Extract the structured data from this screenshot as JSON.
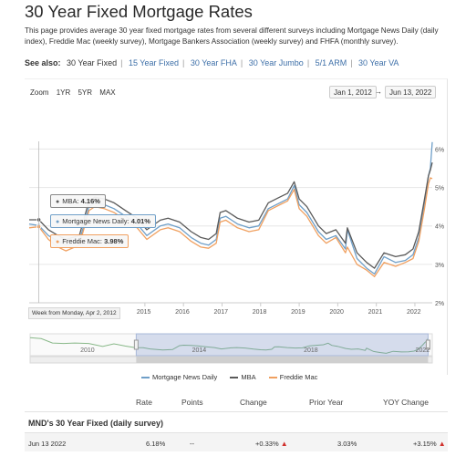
{
  "header": {
    "title": "30 Year Fixed Mortgage Rates",
    "description": "This page provides average 30 year fixed mortgage rates from several different surveys including Mortgage News Daily (daily index), Freddie Mac (weekly survey), Mortgage Bankers Association (weekly survey) and FHFA (monthly survey)."
  },
  "see_also": {
    "label": "See also:",
    "links": [
      "30 Year Fixed",
      "15 Year Fixed",
      "30 Year FHA",
      "30 Year Jumbo",
      "5/1 ARM",
      "30 Year VA"
    ]
  },
  "chart_controls": {
    "zoom_label": "Zoom",
    "zoom_options": [
      "1YR",
      "5YR",
      "MAX"
    ],
    "range_from": "Jan 1, 2012",
    "range_arrow": "→",
    "range_to": "Jun 13, 2022"
  },
  "tooltip": {
    "mba_label": "MBA:",
    "mba_value": "4.16%",
    "mnd_label": "Mortgage News Daily:",
    "mnd_value": "4.01%",
    "fm_label": "Freddie Mac:",
    "fm_value": "3.98%",
    "dot": "●",
    "date_flag": "Week from Monday, Apr 2, 2012"
  },
  "chart_data": {
    "type": "line",
    "x_ticks": [
      "2015",
      "2016",
      "2017",
      "2018",
      "2019",
      "2020",
      "2021",
      "2022"
    ],
    "y_ticks": [
      "2%",
      "3%",
      "4%",
      "5%",
      "6%"
    ],
    "ylim": [
      2,
      6.2
    ],
    "xlim": [
      2012.0,
      2022.45
    ],
    "navigator_ticks": [
      "2010",
      "2014",
      "2018",
      "2022"
    ],
    "series": [
      {
        "name": "Mortgage News Daily",
        "color": "#6f9fc8",
        "points": [
          [
            2012.0,
            4.05
          ],
          [
            2012.25,
            4.01
          ],
          [
            2012.5,
            3.75
          ],
          [
            2012.75,
            3.6
          ],
          [
            2012.95,
            3.5
          ],
          [
            2013.3,
            3.6
          ],
          [
            2013.55,
            4.5
          ],
          [
            2013.7,
            4.6
          ],
          [
            2013.95,
            4.55
          ],
          [
            2014.2,
            4.45
          ],
          [
            2014.5,
            4.25
          ],
          [
            2014.8,
            4.05
          ],
          [
            2015.05,
            3.75
          ],
          [
            2015.4,
            4.0
          ],
          [
            2015.6,
            4.05
          ],
          [
            2015.9,
            3.95
          ],
          [
            2016.2,
            3.7
          ],
          [
            2016.45,
            3.55
          ],
          [
            2016.65,
            3.5
          ],
          [
            2016.85,
            3.65
          ],
          [
            2016.95,
            4.2
          ],
          [
            2017.1,
            4.25
          ],
          [
            2017.4,
            4.05
          ],
          [
            2017.7,
            3.95
          ],
          [
            2017.95,
            4.0
          ],
          [
            2018.2,
            4.45
          ],
          [
            2018.5,
            4.6
          ],
          [
            2018.7,
            4.7
          ],
          [
            2018.87,
            5.05
          ],
          [
            2019.0,
            4.55
          ],
          [
            2019.2,
            4.35
          ],
          [
            2019.5,
            3.85
          ],
          [
            2019.7,
            3.65
          ],
          [
            2019.95,
            3.75
          ],
          [
            2020.2,
            3.4
          ],
          [
            2020.25,
            3.9
          ],
          [
            2020.5,
            3.15
          ],
          [
            2020.75,
            2.9
          ],
          [
            2020.95,
            2.75
          ],
          [
            2021.2,
            3.2
          ],
          [
            2021.5,
            3.05
          ],
          [
            2021.75,
            3.1
          ],
          [
            2021.95,
            3.25
          ],
          [
            2022.1,
            3.7
          ],
          [
            2022.25,
            4.6
          ],
          [
            2022.35,
            5.3
          ],
          [
            2022.4,
            5.5
          ],
          [
            2022.45,
            6.18
          ]
        ]
      },
      {
        "name": "MBA",
        "color": "#5a5a5a",
        "points": [
          [
            2012.0,
            4.16
          ],
          [
            2012.25,
            4.16
          ],
          [
            2012.5,
            3.9
          ],
          [
            2012.75,
            3.75
          ],
          [
            2012.95,
            3.65
          ],
          [
            2013.3,
            3.75
          ],
          [
            2013.55,
            4.65
          ],
          [
            2013.7,
            4.75
          ],
          [
            2013.95,
            4.7
          ],
          [
            2014.2,
            4.6
          ],
          [
            2014.5,
            4.4
          ],
          [
            2014.8,
            4.2
          ],
          [
            2015.05,
            3.9
          ],
          [
            2015.4,
            4.15
          ],
          [
            2015.6,
            4.2
          ],
          [
            2015.9,
            4.1
          ],
          [
            2016.2,
            3.85
          ],
          [
            2016.45,
            3.7
          ],
          [
            2016.65,
            3.65
          ],
          [
            2016.85,
            3.8
          ],
          [
            2016.95,
            4.35
          ],
          [
            2017.1,
            4.4
          ],
          [
            2017.4,
            4.2
          ],
          [
            2017.7,
            4.1
          ],
          [
            2017.95,
            4.15
          ],
          [
            2018.2,
            4.6
          ],
          [
            2018.5,
            4.75
          ],
          [
            2018.7,
            4.85
          ],
          [
            2018.87,
            5.15
          ],
          [
            2019.0,
            4.7
          ],
          [
            2019.2,
            4.5
          ],
          [
            2019.5,
            4.0
          ],
          [
            2019.7,
            3.8
          ],
          [
            2019.95,
            3.9
          ],
          [
            2020.2,
            3.55
          ],
          [
            2020.25,
            3.95
          ],
          [
            2020.5,
            3.3
          ],
          [
            2020.75,
            3.05
          ],
          [
            2020.95,
            2.9
          ],
          [
            2021.2,
            3.3
          ],
          [
            2021.5,
            3.2
          ],
          [
            2021.75,
            3.25
          ],
          [
            2021.95,
            3.4
          ],
          [
            2022.1,
            3.85
          ],
          [
            2022.25,
            4.7
          ],
          [
            2022.35,
            5.3
          ],
          [
            2022.4,
            5.45
          ],
          [
            2022.45,
            5.65
          ]
        ]
      },
      {
        "name": "Freddie Mac",
        "color": "#f0a060",
        "points": [
          [
            2012.0,
            3.95
          ],
          [
            2012.25,
            3.98
          ],
          [
            2012.5,
            3.65
          ],
          [
            2012.75,
            3.45
          ],
          [
            2012.95,
            3.35
          ],
          [
            2013.3,
            3.5
          ],
          [
            2013.55,
            4.4
          ],
          [
            2013.7,
            4.5
          ],
          [
            2013.95,
            4.45
          ],
          [
            2014.2,
            4.35
          ],
          [
            2014.5,
            4.15
          ],
          [
            2014.8,
            3.95
          ],
          [
            2015.05,
            3.65
          ],
          [
            2015.4,
            3.9
          ],
          [
            2015.6,
            3.95
          ],
          [
            2015.9,
            3.85
          ],
          [
            2016.2,
            3.6
          ],
          [
            2016.45,
            3.45
          ],
          [
            2016.65,
            3.42
          ],
          [
            2016.85,
            3.55
          ],
          [
            2016.95,
            4.1
          ],
          [
            2017.1,
            4.15
          ],
          [
            2017.4,
            3.95
          ],
          [
            2017.7,
            3.85
          ],
          [
            2017.95,
            3.9
          ],
          [
            2018.2,
            4.4
          ],
          [
            2018.5,
            4.55
          ],
          [
            2018.7,
            4.65
          ],
          [
            2018.87,
            4.95
          ],
          [
            2019.0,
            4.45
          ],
          [
            2019.2,
            4.25
          ],
          [
            2019.5,
            3.75
          ],
          [
            2019.7,
            3.55
          ],
          [
            2019.95,
            3.7
          ],
          [
            2020.2,
            3.3
          ],
          [
            2020.25,
            3.45
          ],
          [
            2020.5,
            3.0
          ],
          [
            2020.75,
            2.85
          ],
          [
            2020.95,
            2.68
          ],
          [
            2021.2,
            3.05
          ],
          [
            2021.5,
            2.95
          ],
          [
            2021.75,
            3.05
          ],
          [
            2021.95,
            3.15
          ],
          [
            2022.1,
            3.6
          ],
          [
            2022.25,
            4.45
          ],
          [
            2022.35,
            5.1
          ],
          [
            2022.4,
            5.25
          ],
          [
            2022.45,
            5.23
          ]
        ]
      }
    ]
  },
  "table": {
    "headers": [
      "Rate",
      "Points",
      "Change",
      "Prior Year",
      "YOY Change"
    ],
    "section_title": "MND's 30 Year Fixed (daily survey)",
    "row": {
      "date": "Jun 13 2022",
      "rate": "6.18%",
      "points": "--",
      "change": "+0.33%",
      "prior_year": "3.03%",
      "yoy_change": "+3.15%",
      "arrow": "▲"
    }
  }
}
